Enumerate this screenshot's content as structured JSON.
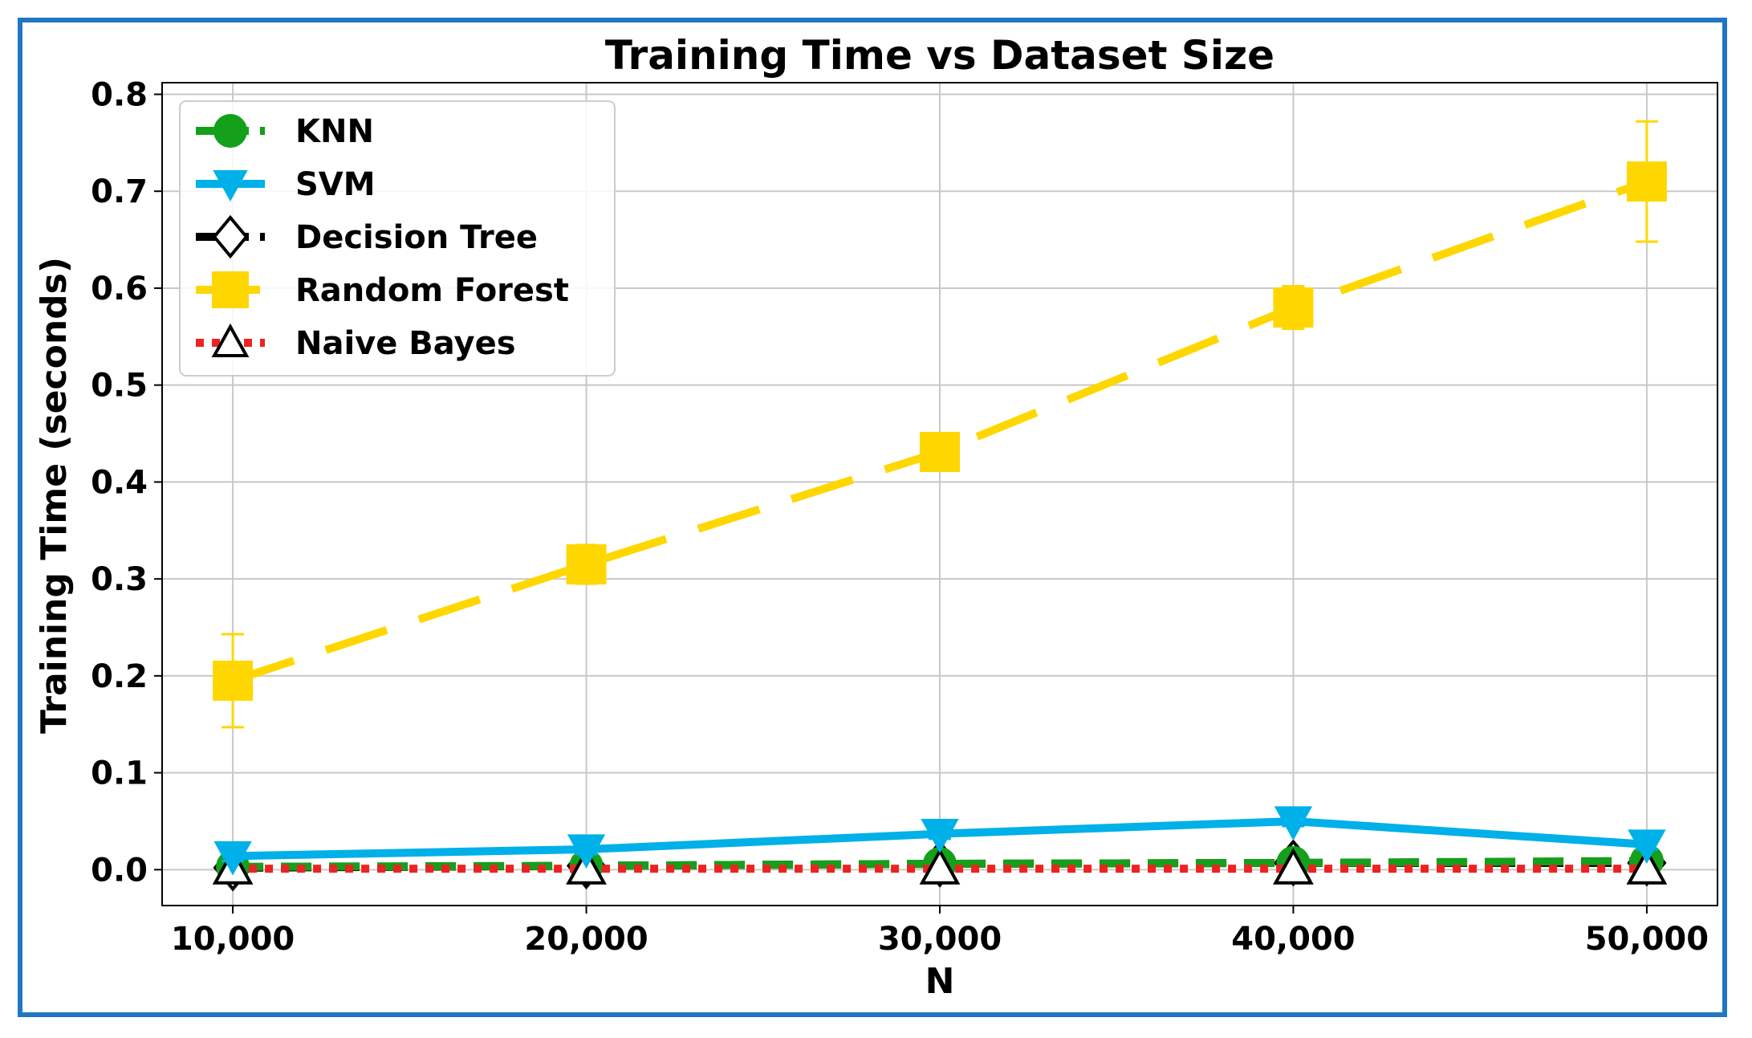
{
  "chart_data": {
    "type": "line",
    "title": "Training Time vs Dataset Size",
    "xlabel": "N",
    "ylabel": "Training Time (seconds)",
    "x": [
      10000,
      20000,
      30000,
      40000,
      50000
    ],
    "x_tick_labels": [
      "10,000",
      "20,000",
      "30,000",
      "40,000",
      "50,000"
    ],
    "y_ticks": [
      0.0,
      0.1,
      0.2,
      0.3,
      0.4,
      0.5,
      0.6,
      0.7,
      0.8
    ],
    "y_tick_labels": [
      "0.0",
      "0.1",
      "0.2",
      "0.3",
      "0.4",
      "0.5",
      "0.6",
      "0.7",
      "0.8"
    ],
    "xlim": [
      8000,
      52000
    ],
    "ylim": [
      -0.037,
      0.812
    ],
    "grid": true,
    "legend_position": "top-left",
    "series": [
      {
        "name": "KNN",
        "values": [
          0.003,
          0.004,
          0.006,
          0.007,
          0.009
        ],
        "errors": [
          0.001,
          0.001,
          0.001,
          0.001,
          0.001
        ],
        "color": "#14a01a",
        "marker": "circle",
        "linestyle": "dashed"
      },
      {
        "name": "SVM",
        "values": [
          0.014,
          0.021,
          0.037,
          0.05,
          0.026
        ],
        "errors": [
          0.005,
          0.005,
          0.005,
          0.005,
          0.005
        ],
        "color": "#00b0e8",
        "marker": "triangle-down",
        "linestyle": "solid"
      },
      {
        "name": "Decision Tree",
        "values": [
          0.002,
          0.004,
          0.006,
          0.007,
          0.007
        ],
        "errors": [
          0.001,
          0.001,
          0.001,
          0.001,
          0.001
        ],
        "color": "#000000",
        "marker": "diamond-open",
        "linestyle": "dashed"
      },
      {
        "name": "Random Forest",
        "values": [
          0.195,
          0.315,
          0.431,
          0.58,
          0.71
        ],
        "errors": [
          0.048,
          0.02,
          0.008,
          0.022,
          0.062
        ],
        "color": "#ffd700",
        "marker": "square",
        "linestyle": "long-dashed"
      },
      {
        "name": "Naive Bayes",
        "values": [
          0.001,
          0.001,
          0.001,
          0.001,
          0.001
        ],
        "errors": [
          0.001,
          0.001,
          0.001,
          0.001,
          0.001
        ],
        "color": "#ee2222",
        "marker": "triangle-up-open",
        "linestyle": "dotted"
      }
    ]
  }
}
